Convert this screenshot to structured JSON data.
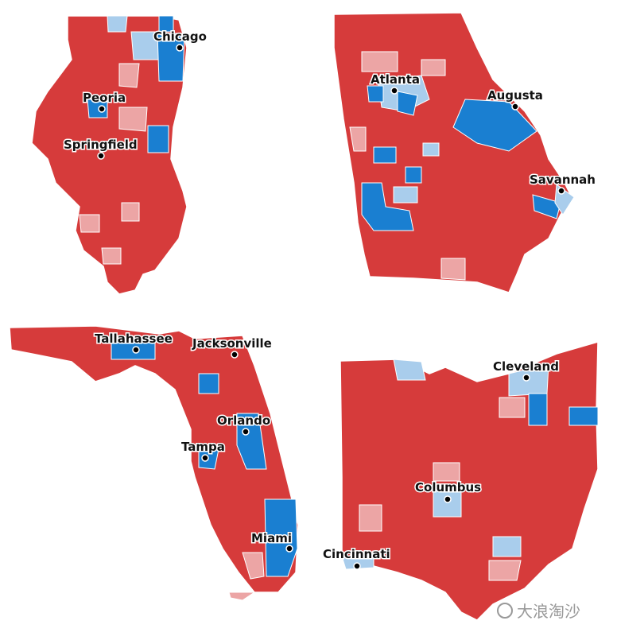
{
  "panels": [
    {
      "cities": [
        "Chicago",
        "Peoria",
        "Springfield"
      ]
    },
    {
      "cities": [
        "Atlanta",
        "Augusta",
        "Savannah"
      ]
    },
    {
      "cities": [
        "Tallahassee",
        "Jacksonville",
        "Orlando",
        "Tampa",
        "Miami"
      ]
    },
    {
      "cities": [
        "Cleveland",
        "Columbus",
        "Cincinnati"
      ]
    }
  ],
  "watermark": "大浪淘沙"
}
